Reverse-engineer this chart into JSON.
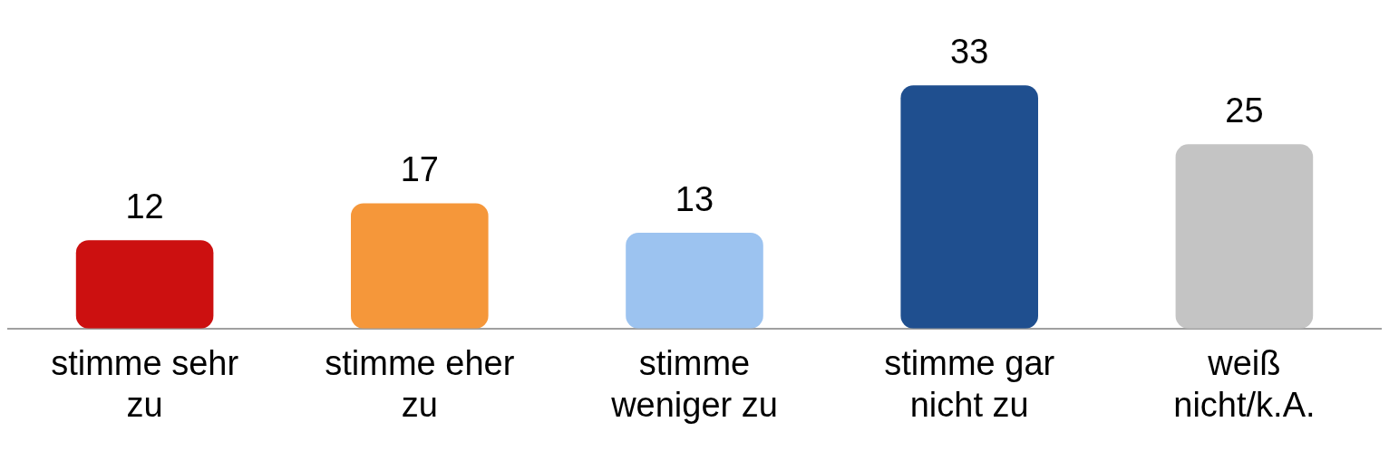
{
  "chart_data": {
    "type": "bar",
    "categories": [
      "stimme sehr zu",
      "stimme eher zu",
      "stimme weniger zu",
      "stimme gar nicht zu",
      "weiß nicht/k.A."
    ],
    "values": [
      12,
      17,
      13,
      33,
      25
    ],
    "colors": [
      "#cc1010",
      "#f5973a",
      "#9cc3f0",
      "#1f4f8f",
      "#c4c4c4"
    ],
    "data_labels": true,
    "grid": false,
    "legend": false
  }
}
